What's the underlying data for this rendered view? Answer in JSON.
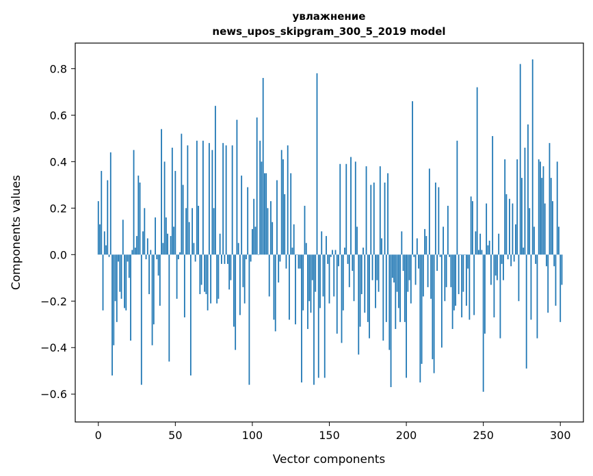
{
  "chart_data": {
    "type": "bar",
    "title": "увлажнение",
    "subtitle": "news_upos_skipgram_300_5_2019 model",
    "xlabel": "Vector components",
    "ylabel": "Components values",
    "xlim": [
      -15,
      315
    ],
    "ylim": [
      -0.72,
      0.91
    ],
    "xticks": [
      0,
      50,
      100,
      150,
      200,
      250,
      300
    ],
    "yticks": [
      -0.6,
      -0.4,
      -0.2,
      0.0,
      0.2,
      0.4,
      0.6,
      0.8
    ],
    "xtick_labels": [
      "0",
      "50",
      "100",
      "150",
      "200",
      "250",
      "300"
    ],
    "ytick_labels": [
      "−0.6",
      "−0.4",
      "−0.2",
      "0.0",
      "0.2",
      "0.4",
      "0.6",
      "0.8"
    ],
    "grid": false,
    "bar_color": "#1f77b4",
    "values": [
      0.23,
      0.13,
      0.36,
      -0.24,
      0.1,
      0.04,
      0.32,
      -0.01,
      0.44,
      -0.52,
      -0.39,
      -0.2,
      -0.29,
      -0.03,
      -0.16,
      -0.19,
      0.15,
      -0.23,
      -0.24,
      -0.03,
      -0.1,
      -0.37,
      0.02,
      0.45,
      0.03,
      0.08,
      0.34,
      0.31,
      -0.56,
      0.1,
      0.2,
      -0.02,
      0.07,
      -0.17,
      0.02,
      -0.39,
      -0.3,
      0.16,
      -0.02,
      -0.09,
      -0.22,
      0.54,
      0.05,
      0.4,
      0.16,
      0.09,
      -0.46,
      0.08,
      0.46,
      0.12,
      0.36,
      -0.19,
      -0.02,
      0.01,
      0.52,
      0.3,
      -0.27,
      0.2,
      0.47,
      0.14,
      -0.52,
      0.2,
      0.05,
      -0.03,
      0.49,
      0.21,
      -0.17,
      -0.13,
      0.49,
      -0.16,
      -0.17,
      -0.24,
      0.48,
      -0.21,
      0.45,
      0.2,
      0.64,
      -0.21,
      -0.19,
      0.09,
      -0.04,
      0.48,
      -0.04,
      0.47,
      -0.04,
      -0.15,
      -0.11,
      0.47,
      -0.31,
      -0.41,
      0.58,
      0.05,
      -0.26,
      0.34,
      -0.14,
      -0.21,
      -0.02,
      0.29,
      -0.56,
      -0.03,
      0.11,
      0.24,
      0.12,
      0.59,
      0.0,
      0.49,
      0.4,
      0.76,
      0.35,
      0.35,
      0.2,
      -0.18,
      0.23,
      0.14,
      -0.28,
      -0.33,
      0.32,
      -0.12,
      -0.03,
      0.45,
      0.41,
      0.26,
      -0.06,
      0.47,
      -0.28,
      0.35,
      0.03,
      0.13,
      -0.3,
      0.0,
      -0.06,
      -0.06,
      -0.55,
      -0.24,
      0.21,
      0.05,
      -0.32,
      -0.2,
      -0.25,
      -0.11,
      -0.56,
      -0.16,
      0.78,
      -0.53,
      -0.23,
      0.1,
      -0.18,
      -0.53,
      0.08,
      -0.04,
      -0.21,
      -0.01,
      0.02,
      -0.18,
      0.02,
      -0.34,
      -0.05,
      0.39,
      -0.38,
      -0.24,
      0.03,
      0.39,
      -0.04,
      -0.14,
      0.42,
      -0.07,
      -0.2,
      0.4,
      0.12,
      -0.43,
      -0.31,
      -0.17,
      0.03,
      -0.25,
      0.38,
      -0.29,
      -0.36,
      0.3,
      -0.11,
      0.31,
      -0.23,
      -0.11,
      -0.16,
      0.38,
      0.07,
      -0.37,
      0.31,
      -0.29,
      0.35,
      -0.41,
      -0.57,
      -0.1,
      -0.12,
      -0.32,
      -0.16,
      -0.23,
      -0.29,
      0.1,
      -0.07,
      -0.29,
      -0.53,
      -0.16,
      -0.11,
      -0.21,
      0.66,
      -0.01,
      -0.13,
      0.07,
      -0.06,
      -0.55,
      -0.47,
      -0.18,
      0.11,
      0.08,
      -0.14,
      0.37,
      -0.19,
      -0.45,
      -0.51,
      0.31,
      -0.07,
      0.29,
      -0.01,
      -0.4,
      0.12,
      -0.2,
      -0.14,
      0.21,
      -0.01,
      -0.14,
      -0.32,
      -0.24,
      -0.22,
      0.49,
      -0.17,
      0.0,
      -0.27,
      -0.16,
      0.0,
      -0.22,
      -0.06,
      -0.28,
      0.25,
      0.23,
      -0.26,
      0.1,
      0.72,
      0.02,
      0.09,
      0.02,
      -0.59,
      -0.34,
      0.22,
      0.04,
      0.06,
      -0.13,
      0.51,
      -0.27,
      -0.09,
      -0.11,
      0.09,
      -0.36,
      -0.04,
      -0.11,
      0.41,
      0.26,
      -0.02,
      0.24,
      -0.05,
      0.22,
      -0.03,
      0.13,
      0.41,
      -0.2,
      0.82,
      0.33,
      0.03,
      0.46,
      -0.49,
      0.56,
      0.2,
      -0.28,
      0.84,
      0.12,
      -0.04,
      -0.36,
      0.41,
      0.4,
      0.33,
      0.38,
      0.22,
      -0.05,
      -0.25,
      0.48,
      0.33,
      0.23,
      -0.05,
      -0.22,
      0.4,
      0.12,
      -0.29,
      -0.13
    ]
  }
}
